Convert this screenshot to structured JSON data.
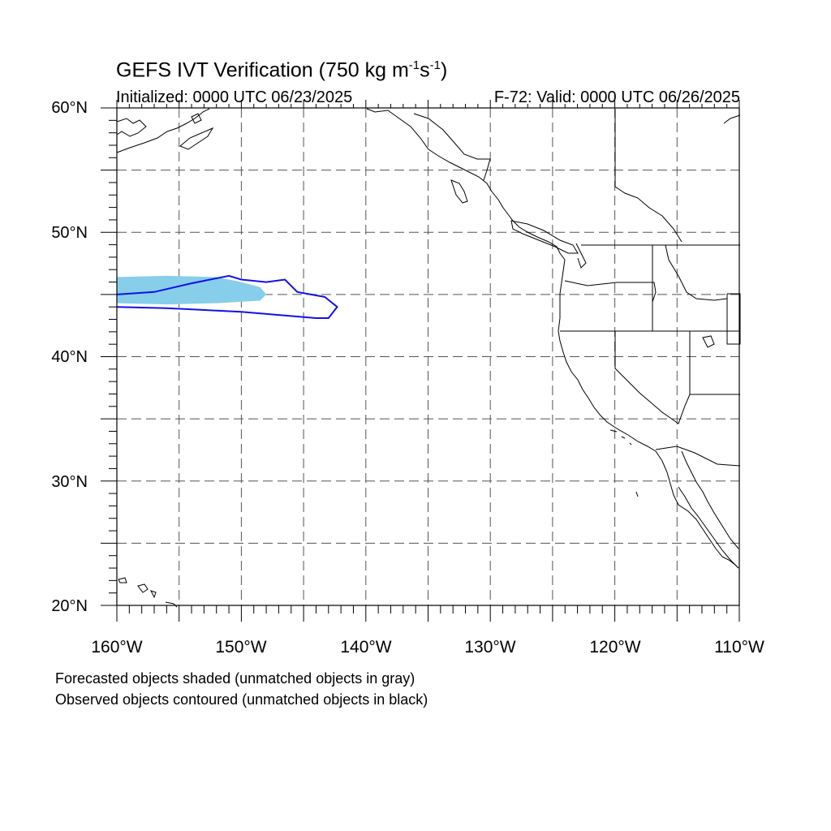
{
  "title_main": "GEFS IVT Verification (750 kg m",
  "title_exp1": "-1",
  "title_mid": "s",
  "title_exp2": "-1",
  "title_end": ")",
  "initialized": "Initialized: 0000 UTC 06/23/2025",
  "valid": "F-72: Valid: 0000 UTC 06/26/2025",
  "lat_labels": [
    "60°N",
    "50°N",
    "40°N",
    "30°N",
    "20°N"
  ],
  "lon_labels": [
    "160°W",
    "150°W",
    "140°W",
    "130°W",
    "120°W",
    "110°W"
  ],
  "note_forecast": "Forecasted objects shaded (unmatched objects in gray)",
  "note_observed": "Observed objects contoured (unmatched objects in black)",
  "colors": {
    "forecast_shade": "#87ceeb",
    "observed_contour": "#1010ee",
    "coastline": "#000000",
    "grid": "#555555"
  },
  "map_extent": {
    "lon": [
      -160,
      -110
    ],
    "lat": [
      20,
      60
    ]
  },
  "forecast_object": [
    [
      -160,
      46.4
    ],
    [
      -156,
      46.5
    ],
    [
      -152,
      46.4
    ],
    [
      -150,
      46.0
    ],
    [
      -148.5,
      45.6
    ],
    [
      -148,
      45.0
    ],
    [
      -148.5,
      44.5
    ],
    [
      -152,
      44.3
    ],
    [
      -156,
      44.2
    ],
    [
      -160,
      44.3
    ]
  ],
  "observed_object": [
    [
      -160,
      45.0
    ],
    [
      -157,
      45.2
    ],
    [
      -154,
      45.9
    ],
    [
      -151,
      46.5
    ],
    [
      -150,
      46.2
    ],
    [
      -148,
      46.0
    ],
    [
      -146.5,
      46.2
    ],
    [
      -145.5,
      45.2
    ],
    [
      -143.3,
      44.8
    ],
    [
      -142.3,
      44.0
    ],
    [
      -143,
      43.1
    ],
    [
      -144,
      43.1
    ],
    [
      -150,
      43.6
    ],
    [
      -156,
      43.9
    ],
    [
      -160,
      44.0
    ]
  ]
}
